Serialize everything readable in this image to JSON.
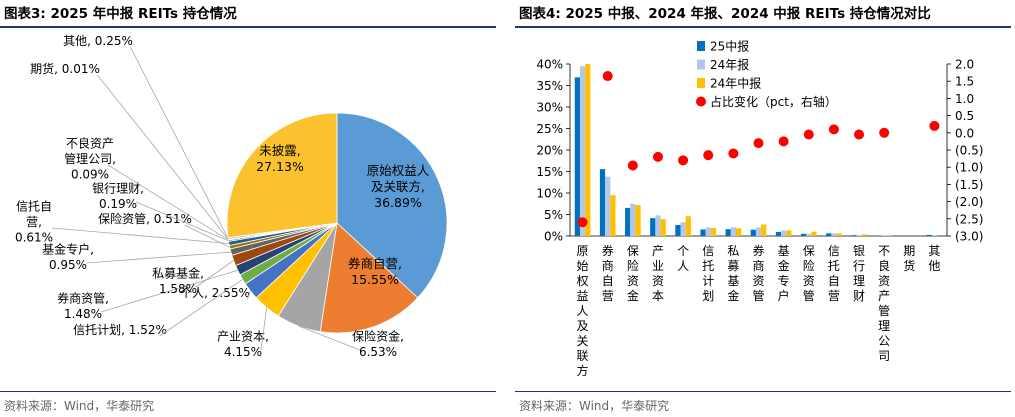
{
  "left": {
    "title": "图表3:   2025 年中报 REITs 持仓情况",
    "source": "资料来源：Wind，华泰研究"
  },
  "right": {
    "title": "图表4:   2025 中报、2024 年报、2024 中报 REITs 持仓情况对比",
    "source": "资料来源：Wind，华泰研究"
  },
  "chart_data": [
    {
      "type": "pie",
      "title": "2025 年中报 REITs 持仓情况",
      "slices": [
        {
          "label": "原始权益人及关联方",
          "value": 36.89,
          "value_text": "36.89%",
          "color": "#5b9bd5"
        },
        {
          "label": "券商自营",
          "value": 15.55,
          "value_text": "15.55%",
          "color": "#ed7d31"
        },
        {
          "label": "保险资金",
          "value": 6.53,
          "value_text": "6.53%",
          "color": "#a5a5a5"
        },
        {
          "label": "产业资本",
          "value": 4.15,
          "value_text": "4.15%",
          "color": "#ffc000"
        },
        {
          "label": "个人",
          "value": 2.55,
          "value_text": "2.55%",
          "color": "#4472c4"
        },
        {
          "label": "信托计划",
          "value": 1.52,
          "value_text": "1.52%",
          "color": "#70ad47"
        },
        {
          "label": "券商资管",
          "value": 1.48,
          "value_text": "1.48%",
          "color": "#264478"
        },
        {
          "label": "私募基金",
          "value": 1.58,
          "value_text": "1.58%",
          "color": "#9e480e"
        },
        {
          "label": "基金专户",
          "value": 0.95,
          "value_text": "0.95%",
          "color": "#636363"
        },
        {
          "label": "保险资管",
          "value": 0.51,
          "value_text": "0.51%",
          "color": "#997300"
        },
        {
          "label": "信托自营",
          "value": 0.61,
          "value_text": "0.61%",
          "color": "#255e91"
        },
        {
          "label": "银行理财",
          "value": 0.19,
          "value_text": "0.19%",
          "color": "#43682b"
        },
        {
          "label": "不良资产管理公司",
          "value": 0.09,
          "value_text": "0.09%",
          "color": "#698ed0"
        },
        {
          "label": "期货",
          "value": 0.01,
          "value_text": "0.01%",
          "color": "#f1975a"
        },
        {
          "label": "其他",
          "value": 0.25,
          "value_text": "0.25%",
          "color": "#b7b7b7"
        },
        {
          "label": "未披露",
          "value": 27.13,
          "value_text": "27.13%",
          "color": "#fbc22e"
        }
      ]
    },
    {
      "type": "bar",
      "title": "2025 中报、2024 年报、2024 中报 REITs 持仓情况对比",
      "categories": [
        "原始权益人及关联方",
        "券商自营",
        "保险资金",
        "产业资本",
        "个人",
        "信托计划",
        "私募基金",
        "券商资管",
        "基金专户",
        "保险资管",
        "信托自营",
        "银行理财",
        "不良资产管理公司",
        "期货",
        "其他"
      ],
      "series": [
        {
          "name": "25中报",
          "color": "#0070c0",
          "axis": "left",
          "values": [
            36.89,
            15.55,
            6.53,
            4.15,
            2.55,
            1.52,
            1.58,
            1.48,
            0.95,
            0.51,
            0.61,
            0.19,
            0.09,
            0.01,
            0.25
          ]
        },
        {
          "name": "24年报",
          "color": "#b4c7e7",
          "axis": "left",
          "values": [
            39.5,
            13.8,
            7.5,
            4.8,
            3.2,
            2.0,
            2.0,
            2.0,
            1.3,
            0.5,
            0.6,
            0.2,
            0.1,
            0.0,
            0.2
          ]
        },
        {
          "name": "24年中报",
          "color": "#ffc000",
          "axis": "left",
          "values": [
            40.0,
            9.5,
            7.2,
            3.9,
            4.6,
            1.9,
            1.8,
            2.7,
            1.3,
            1.0,
            0.6,
            0.4,
            0.1,
            0.0,
            0.0
          ]
        },
        {
          "name": "占比变化（pct，右轴）",
          "type": "scatter",
          "color": "#ff0000",
          "axis": "right",
          "values": [
            -2.6,
            1.65,
            -0.95,
            -0.7,
            -0.8,
            -0.65,
            -0.6,
            -0.3,
            -0.25,
            -0.05,
            0.1,
            -0.05,
            0.0,
            null,
            0.2
          ]
        }
      ],
      "ylim": [
        0,
        40
      ],
      "y_ticks": [
        "0%",
        "5%",
        "10%",
        "15%",
        "20%",
        "25%",
        "30%",
        "35%",
        "40%"
      ],
      "y2lim": [
        -3.0,
        2.0
      ],
      "y2_ticks": [
        "2.0",
        "1.5",
        "1.0",
        "0.5",
        "0.0",
        "(0.5)",
        "(1.0)",
        "(1.5)",
        "(2.0)",
        "(2.5)",
        "(3.0)"
      ],
      "legend": "top-left",
      "grid": false
    }
  ]
}
